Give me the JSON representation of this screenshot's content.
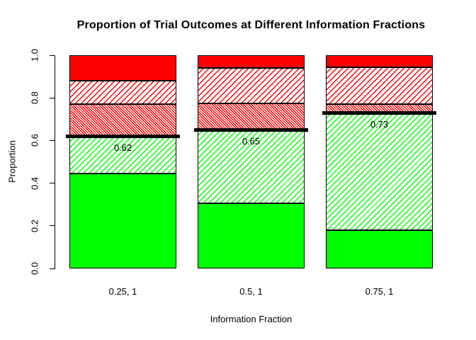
{
  "figure": {
    "background": "#FFFFFF",
    "axis_color": "#000000",
    "text_color": "#000000"
  },
  "chart_data": {
    "type": "bar",
    "subtype": "stacked",
    "title": "Proportion of Trial Outcomes at Different Information Fractions",
    "xlabel": "Information Fraction",
    "ylabel": "Proportion",
    "ylim": [
      0,
      1
    ],
    "grid": "off",
    "legend": "none",
    "y_axis": {
      "ticks": [
        "0.0",
        "0.2",
        "0.4",
        "0.6",
        "0.8",
        "1.0"
      ]
    },
    "categories": [
      "0.25, 1",
      "0.5, 1",
      "0.75, 1"
    ],
    "series": [
      {
        "name": "solid-green",
        "fill": "solid",
        "color": "#00FF00",
        "values": [
          0.445,
          0.305,
          0.18
        ]
      },
      {
        "name": "green-hatched",
        "fill": "diagonal",
        "color": "#00FF00",
        "values": [
          0.175,
          0.345,
          0.55
        ]
      },
      {
        "name": "red-dense-hatched",
        "fill": "dense-diagonal",
        "color": "#FF0000",
        "values": [
          0.15,
          0.125,
          0.04
        ]
      },
      {
        "name": "red-hatched",
        "fill": "diagonal",
        "color": "#FF0000",
        "values": [
          0.11,
          0.165,
          0.175
        ]
      },
      {
        "name": "solid-red",
        "fill": "solid",
        "color": "#FF0000",
        "values": [
          0.12,
          0.06,
          0.055
        ]
      }
    ],
    "threshold_lines": {
      "color": "#000000",
      "values": [
        0.62,
        0.65,
        0.73
      ],
      "labels": [
        "0.62",
        "0.65",
        "0.73"
      ]
    }
  }
}
